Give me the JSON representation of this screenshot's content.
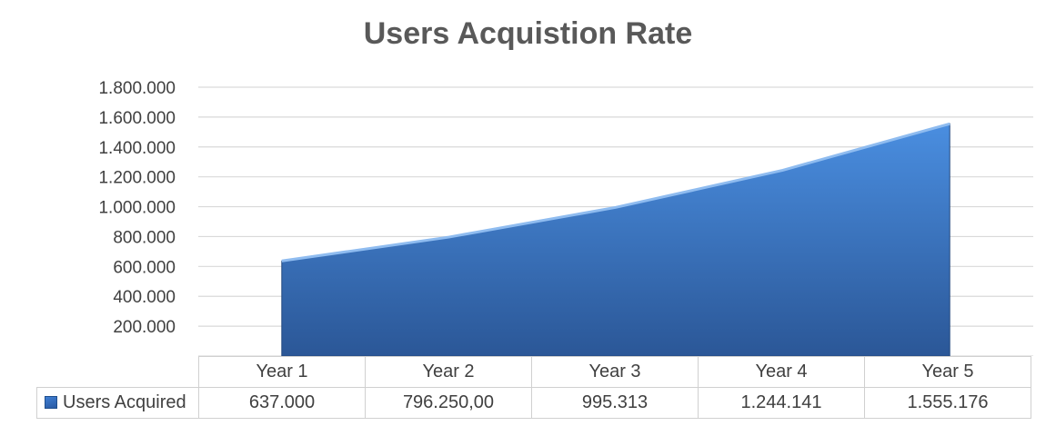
{
  "title": "Users Acquistion Rate",
  "chart_data": {
    "type": "area",
    "title": "Users Acquistion Rate",
    "categories": [
      "Year 1",
      "Year 2",
      "Year 3",
      "Year 4",
      "Year 5"
    ],
    "series": [
      {
        "name": "Users Acquired",
        "values": [
          637000,
          796250,
          995313,
          1244141,
          1555176
        ]
      }
    ],
    "ylim": [
      0,
      1800000
    ],
    "yticks": [
      0,
      200000,
      400000,
      600000,
      800000,
      1000000,
      1200000,
      1400000,
      1600000,
      1800000
    ],
    "ytick_labels": [
      "-",
      "200.000",
      "400.000",
      "600.000",
      "800.000",
      "1.000.000",
      "1.200.000",
      "1.400.000",
      "1.600.000",
      "1.800.000"
    ],
    "data_table": {
      "series_label": "Users Acquired",
      "values": [
        "637.000",
        "796.250,00",
        "995.313",
        "1.244.141",
        "1.555.176"
      ]
    },
    "grid": true,
    "legend": "data-table",
    "colors": {
      "fill_top": "#4a8ee0",
      "fill_bottom": "#2b5797",
      "edge": "#8fbcf0",
      "grid": "#d9d9d9"
    }
  }
}
